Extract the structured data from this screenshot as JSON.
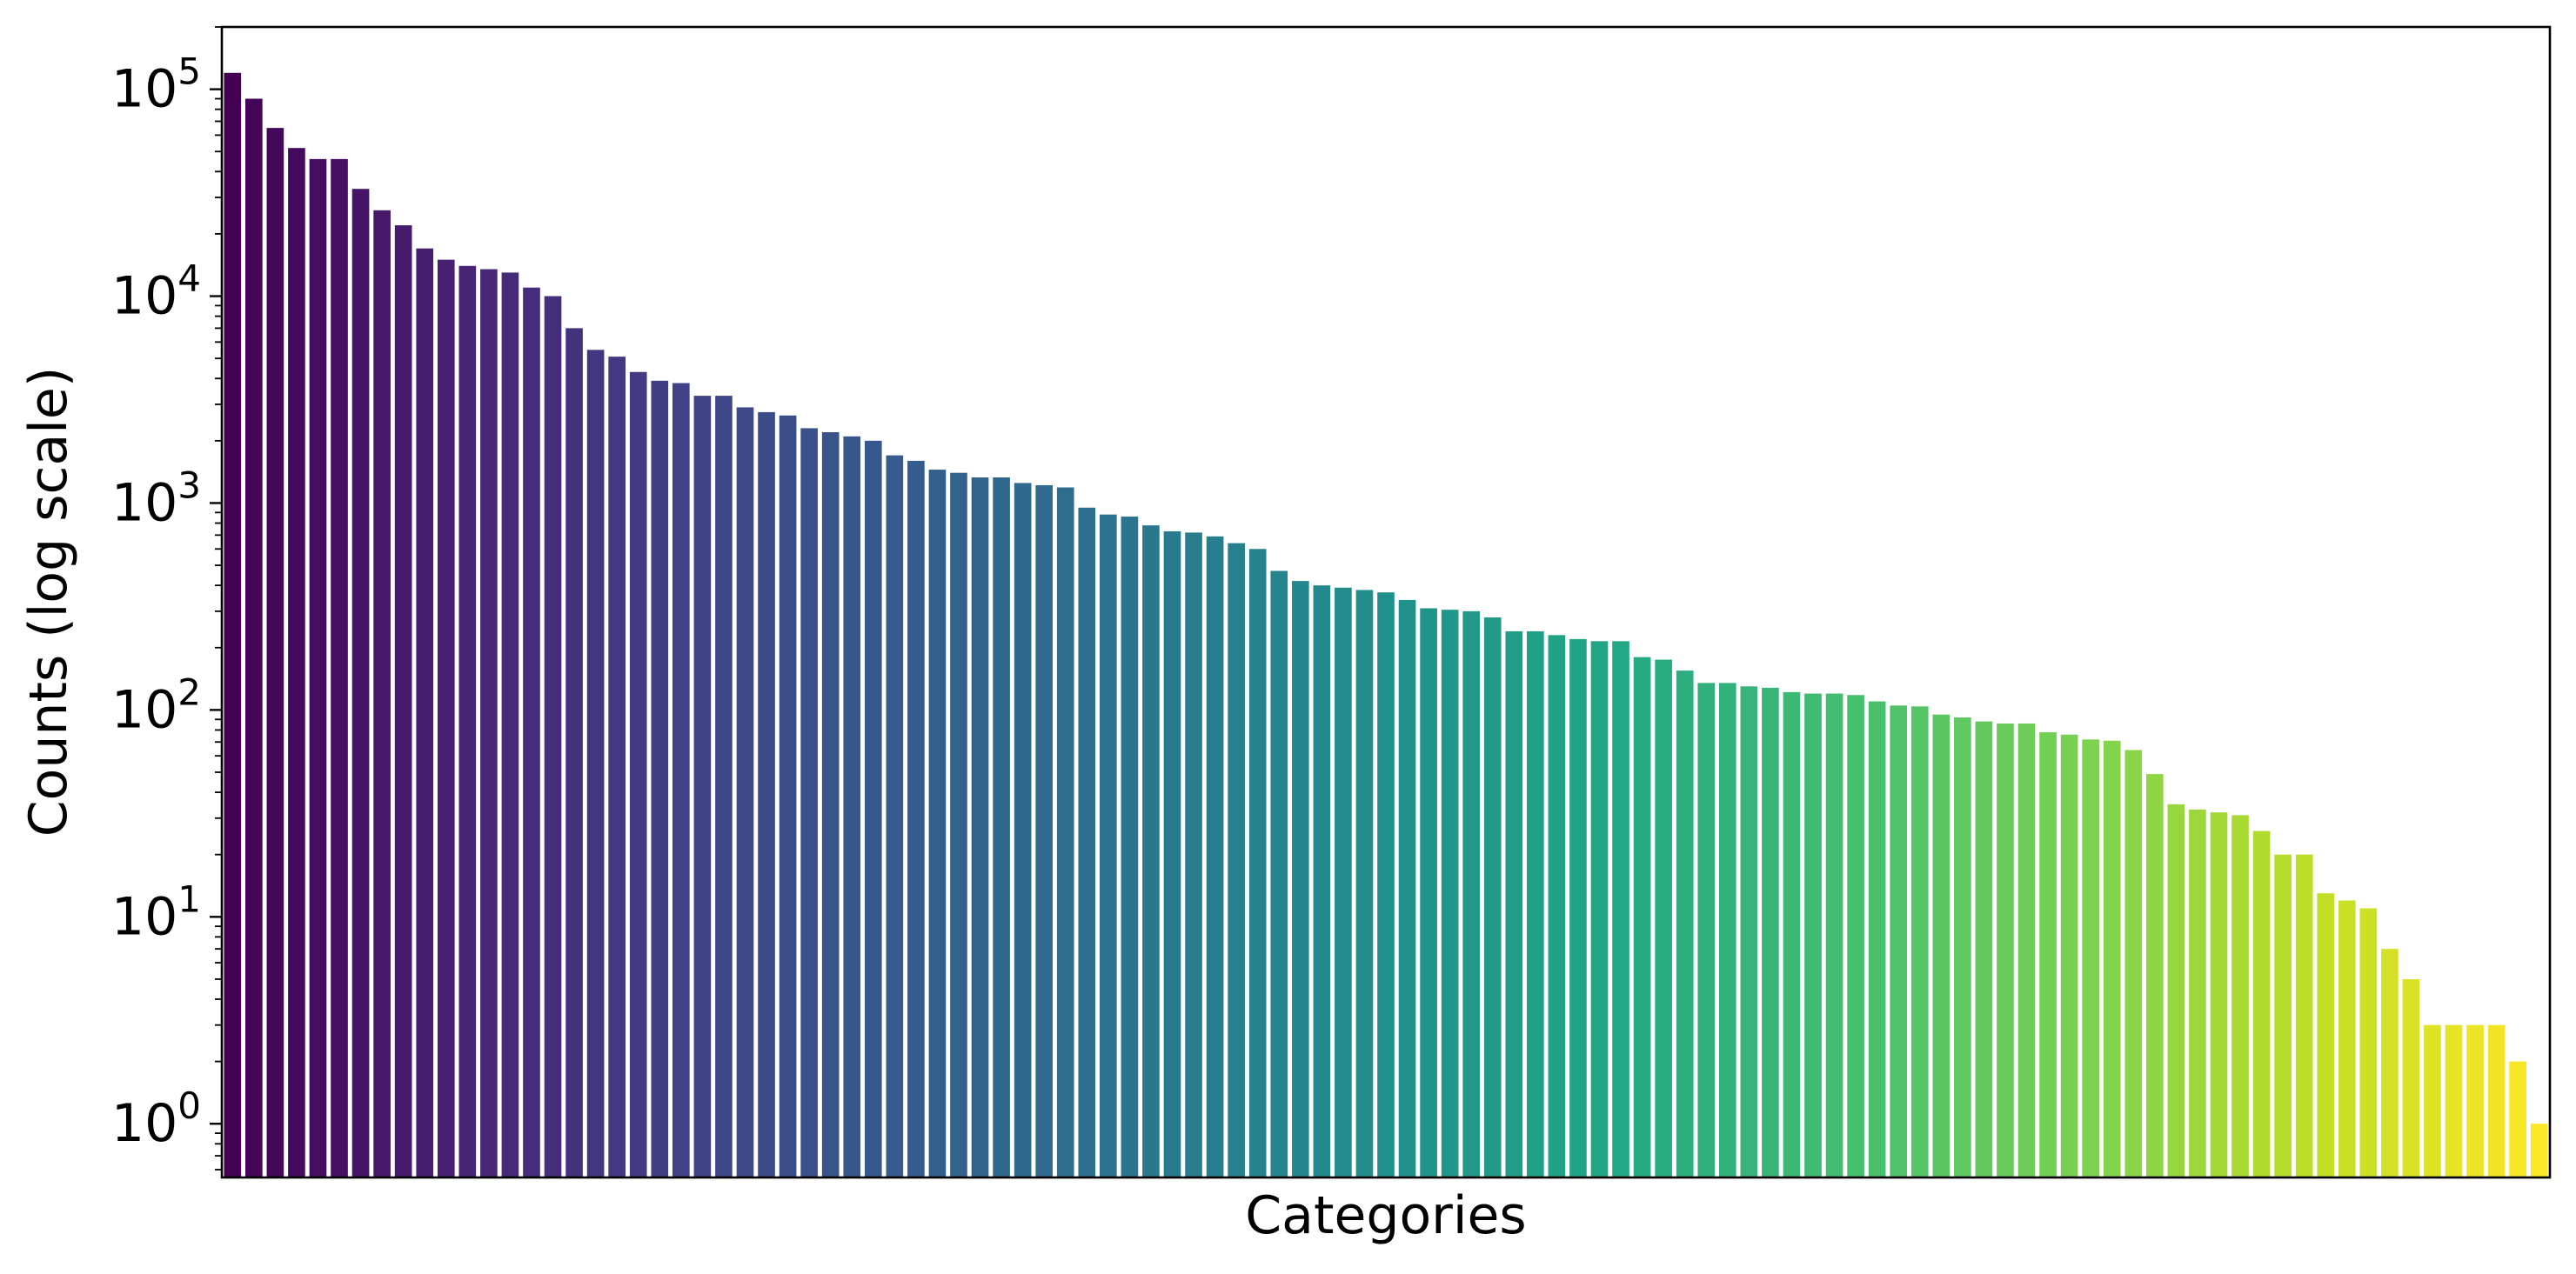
{
  "chart_data": {
    "type": "bar",
    "title": "",
    "xlabel": "Categories",
    "ylabel": "Counts (log scale)",
    "yscale": "log",
    "ylim": [
      0.55,
      200000
    ],
    "y_ticks": [
      {
        "value": 1,
        "base": "10",
        "exp": "0"
      },
      {
        "value": 10,
        "base": "10",
        "exp": "1"
      },
      {
        "value": 100,
        "base": "10",
        "exp": "2"
      },
      {
        "value": 1000,
        "base": "10",
        "exp": "3"
      },
      {
        "value": 10000,
        "base": "10",
        "exp": "4"
      },
      {
        "value": 100000,
        "base": "10",
        "exp": "5"
      }
    ],
    "x_ticks_visible": false,
    "grid": false,
    "colormap": "viridis",
    "values": [
      120000,
      90000,
      65000,
      52000,
      46000,
      46000,
      33000,
      26000,
      22000,
      17000,
      15000,
      14000,
      13500,
      13000,
      11000,
      10000,
      7000,
      5500,
      5100,
      4300,
      3900,
      3800,
      3300,
      3300,
      2900,
      2750,
      2650,
      2300,
      2200,
      2100,
      2000,
      1700,
      1600,
      1450,
      1400,
      1330,
      1330,
      1250,
      1220,
      1190,
      950,
      880,
      860,
      780,
      730,
      720,
      690,
      640,
      600,
      470,
      420,
      400,
      390,
      380,
      370,
      340,
      310,
      305,
      300,
      280,
      240,
      240,
      230,
      220,
      215,
      215,
      180,
      175,
      155,
      135,
      135,
      130,
      128,
      122,
      120,
      120,
      118,
      110,
      105,
      104,
      95,
      92,
      88,
      86,
      86,
      78,
      76,
      72,
      71,
      64,
      49,
      35,
      33,
      32,
      31,
      26,
      20,
      20,
      13,
      12,
      11,
      7,
      5,
      3,
      3,
      3,
      3,
      2,
      1
    ]
  }
}
